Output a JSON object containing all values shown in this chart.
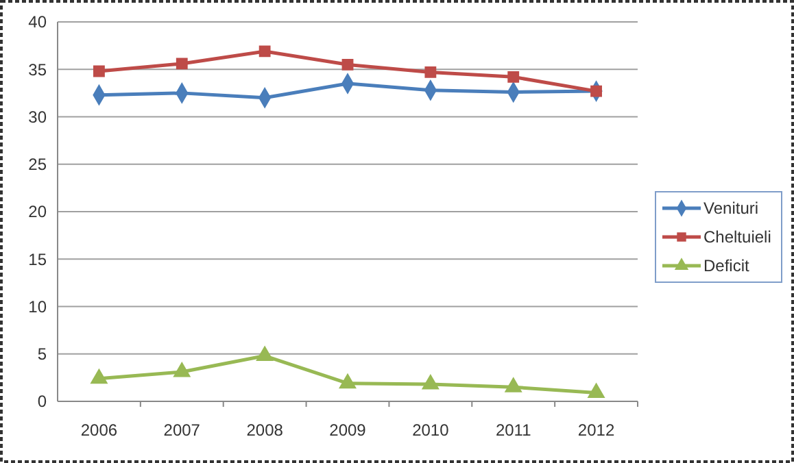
{
  "chart_data": {
    "type": "line",
    "categories": [
      "2006",
      "2007",
      "2008",
      "2009",
      "2010",
      "2011",
      "2012"
    ],
    "series": [
      {
        "name": "Venituri",
        "color": "#4a7ebb",
        "values": [
          32.3,
          32.5,
          32.0,
          33.5,
          32.8,
          32.6,
          32.7
        ],
        "marker": "diamond"
      },
      {
        "name": "Cheltuieli",
        "color": "#be4b48",
        "values": [
          34.8,
          35.6,
          36.9,
          35.5,
          34.7,
          34.2,
          32.7
        ],
        "marker": "square"
      },
      {
        "name": "Deficit",
        "color": "#98b954",
        "values": [
          2.4,
          3.1,
          4.8,
          1.9,
          1.8,
          1.5,
          0.9
        ],
        "marker": "triangle"
      }
    ],
    "ylim": [
      0,
      40
    ],
    "yticks": [
      0,
      5,
      10,
      15,
      20,
      25,
      30,
      35,
      40
    ],
    "grid": "y",
    "legend": "right",
    "line_style": "solid"
  }
}
